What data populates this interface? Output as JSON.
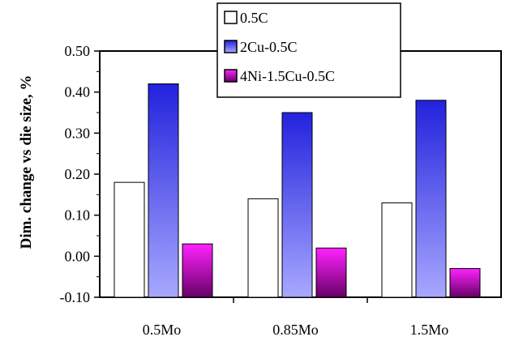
{
  "chart_data": {
    "type": "bar",
    "title": "",
    "xlabel": "",
    "ylabel": "Dim. change vs die size, %",
    "categories": [
      "0.5Mo",
      "0.85Mo",
      "1.5Mo"
    ],
    "ylim": [
      -0.1,
      0.5
    ],
    "yticks": [
      "-0.10",
      "0.00",
      "0.10",
      "0.20",
      "0.30",
      "0.40",
      "0.50"
    ],
    "grid": false,
    "legend_position": "top-center",
    "series": [
      {
        "name": "0.5C",
        "values": [
          0.18,
          0.14,
          0.13
        ],
        "color": "#ffffff"
      },
      {
        "name": "2Cu-0.5C",
        "values": [
          0.42,
          0.35,
          0.38
        ],
        "color": "#3333ee"
      },
      {
        "name": "4Ni-1.5Cu-0.5C",
        "values": [
          0.03,
          0.02,
          -0.03
        ],
        "color": "#ee22ee"
      }
    ]
  }
}
